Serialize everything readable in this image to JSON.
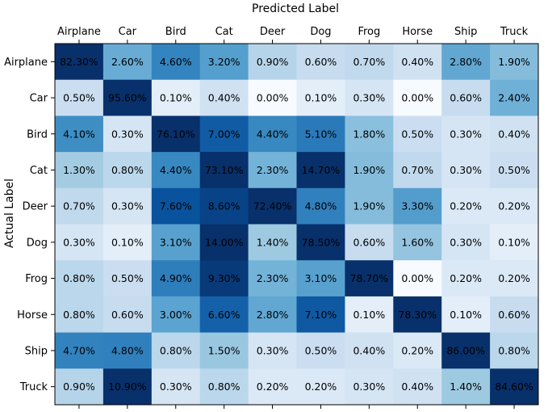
{
  "chart_data": {
    "type": "heatmap",
    "title": "Predicted Label",
    "xlabel": "Predicted Label",
    "ylabel": "Actual Label",
    "x_categories": [
      "Airplane",
      "Car",
      "Bird",
      "Cat",
      "Deer",
      "Dog",
      "Frog",
      "Horse",
      "Ship",
      "Truck"
    ],
    "y_categories": [
      "Airplane",
      "Car",
      "Bird",
      "Cat",
      "Deer",
      "Dog",
      "Frog",
      "Horse",
      "Ship",
      "Truck"
    ],
    "values": [
      [
        82.3,
        2.6,
        4.6,
        3.2,
        0.9,
        0.6,
        0.7,
        0.4,
        2.8,
        1.9
      ],
      [
        0.5,
        95.6,
        0.1,
        0.4,
        0.0,
        0.1,
        0.3,
        0.0,
        0.6,
        2.4
      ],
      [
        4.1,
        0.3,
        76.1,
        7.0,
        4.4,
        5.1,
        1.8,
        0.5,
        0.3,
        0.4
      ],
      [
        1.3,
        0.8,
        4.4,
        73.1,
        2.3,
        14.7,
        1.9,
        0.7,
        0.3,
        0.5
      ],
      [
        0.7,
        0.3,
        7.6,
        8.6,
        72.4,
        4.8,
        1.9,
        3.3,
        0.2,
        0.2
      ],
      [
        0.3,
        0.1,
        3.1,
        14.0,
        1.4,
        78.5,
        0.6,
        1.6,
        0.3,
        0.1
      ],
      [
        0.8,
        0.5,
        4.9,
        9.3,
        2.3,
        3.1,
        78.7,
        0.0,
        0.2,
        0.2
      ],
      [
        0.8,
        0.6,
        3.0,
        6.6,
        2.8,
        7.1,
        0.1,
        78.3,
        0.1,
        0.6
      ],
      [
        4.7,
        4.8,
        0.8,
        1.5,
        0.3,
        0.5,
        0.4,
        0.2,
        86.0,
        0.8
      ],
      [
        0.9,
        10.9,
        0.3,
        0.8,
        0.2,
        0.2,
        0.3,
        0.4,
        1.4,
        84.6
      ]
    ],
    "value_format": "percent_2dp",
    "colormap": "Blues",
    "color_saturation_value": 10
  },
  "colors": {
    "low": "#f7fbff",
    "high": "#08306b"
  }
}
